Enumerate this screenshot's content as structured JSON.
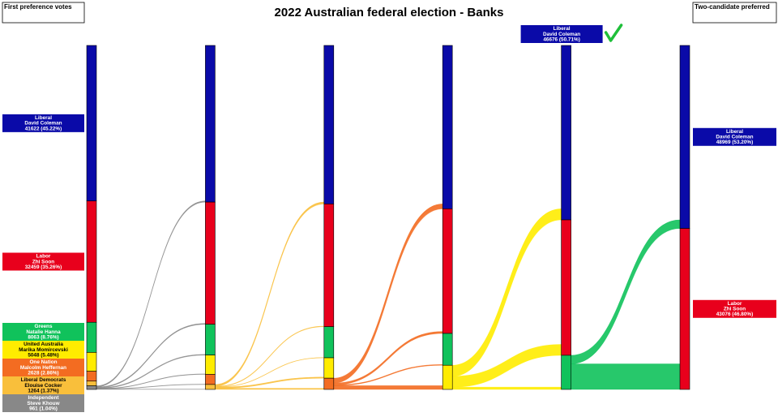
{
  "chart_data": {
    "type": "sankey",
    "title": "2022 Australian federal election - Banks",
    "left_label": "First preference votes",
    "right_label": "Two-candidate preferred",
    "candidates": [
      {
        "party": "Liberal",
        "name": "David Coleman",
        "color": "#0a0aa8",
        "text_color": "#ffffff"
      },
      {
        "party": "Labor",
        "name": "Zhi Soon",
        "color": "#e8001c",
        "text_color": "#ffffff"
      },
      {
        "party": "Greens",
        "name": "Natalie Hanna",
        "color": "#10c25b",
        "text_color": "#ffffff"
      },
      {
        "party": "United Australia",
        "name": "Marika Momircevski",
        "color": "#ffec00",
        "text_color": "#000000"
      },
      {
        "party": "One Nation",
        "name": "Malcolm Heffernan",
        "color": "#f36c21",
        "text_color": "#ffffff"
      },
      {
        "party": "Liberal Democrats",
        "name": "Elouise Cocker",
        "color": "#f9bf3b",
        "text_color": "#000000"
      },
      {
        "party": "Independent",
        "name": "Steve Khouw",
        "color": "#888888",
        "text_color": "#ffffff"
      }
    ],
    "stages": [
      {
        "counts": [
          41622,
          32459,
          8063,
          5048,
          2628,
          1264,
          961
        ],
        "value_labels": [
          "41622 (45.22%)",
          "32459 (35.26%)",
          "8063 (8.76%)",
          "5048 (5.48%)",
          "2628 (2.86%)",
          "1264 (1.37%)",
          "961 (1.04%)"
        ],
        "transfers": [
          300,
          230,
          180,
          110,
          80,
          61,
          null
        ]
      },
      {
        "counts": [
          41922,
          32689,
          8243,
          5158,
          2708,
          1325,
          null
        ],
        "transfers": [
          500,
          150,
          80,
          300,
          295,
          null,
          null
        ]
      },
      {
        "counts": [
          42422,
          32839,
          8323,
          5458,
          3003,
          null,
          null
        ],
        "transfers": [
          1300,
          500,
          200,
          1003,
          null,
          null,
          null
        ]
      },
      {
        "counts": [
          43722,
          33339,
          8523,
          6461,
          null,
          null,
          null
        ],
        "transfers": [
          2954,
          2900,
          607,
          null,
          null,
          null,
          null
        ]
      },
      {
        "counts": [
          46676,
          36239,
          9130,
          null,
          null,
          null,
          null
        ],
        "value_labels": [
          "46676 (50.71%)",
          null,
          null,
          null,
          null,
          null,
          null
        ],
        "transfers": [
          2293,
          6837,
          null,
          null,
          null,
          null,
          null
        ]
      },
      {
        "counts": [
          48969,
          43076,
          null,
          null,
          null,
          null,
          null
        ],
        "value_labels": [
          "48969 (53.20%)",
          "43076 (46.80%)",
          null,
          null,
          null,
          null,
          null
        ]
      }
    ]
  }
}
